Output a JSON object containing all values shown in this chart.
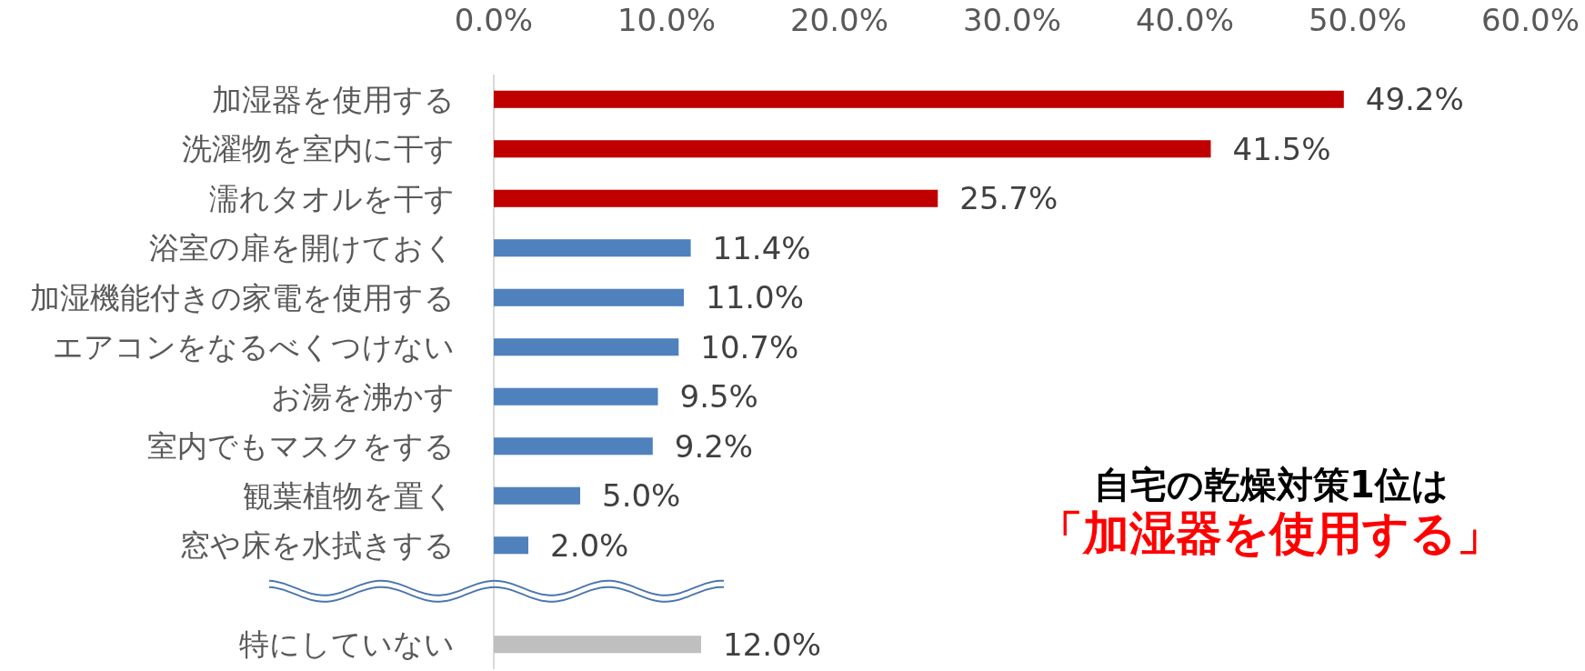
{
  "chart_data": {
    "type": "bar",
    "orientation": "horizontal",
    "categories": [
      "加湿器を使用する",
      "洗濯物を室内に干す",
      "濡れタオルを干す",
      "浴室の扉を開けておく",
      "加湿機能付きの家電を使用する",
      "エアコンをなるべくつけない",
      "お湯を沸かす",
      "室内でもマスクをする",
      "観葉植物を置く",
      "窓や床を水拭きする",
      null,
      "特にしていない"
    ],
    "values": [
      49.2,
      41.5,
      25.7,
      11.4,
      11.0,
      10.7,
      9.5,
      9.2,
      5.0,
      2.0,
      null,
      12.0
    ],
    "colors": [
      "#c00000",
      "#c00000",
      "#c00000",
      "#4f81bd",
      "#4f81bd",
      "#4f81bd",
      "#4f81bd",
      "#4f81bd",
      "#4f81bd",
      "#4f81bd",
      null,
      "#bfbfbf"
    ],
    "value_labels": [
      "49.2%",
      "41.5%",
      "25.7%",
      "11.4%",
      "11.0%",
      "10.7%",
      "9.5%",
      "9.2%",
      "5.0%",
      "2.0%",
      null,
      "12.0%"
    ],
    "xlim": [
      0,
      60
    ],
    "xticks": [
      {
        "value": 0,
        "label": "0.0%"
      },
      {
        "value": 10,
        "label": "10.0%"
      },
      {
        "value": 20,
        "label": "20.0%"
      },
      {
        "value": 30,
        "label": "30.0%"
      },
      {
        "value": 40,
        "label": "40.0%"
      },
      {
        "value": 50,
        "label": "50.0%"
      },
      {
        "value": 60,
        "label": "60.0%"
      }
    ],
    "annotations": [
      "自宅の乾燥対策1位は",
      "「加湿器を使用する」"
    ]
  }
}
